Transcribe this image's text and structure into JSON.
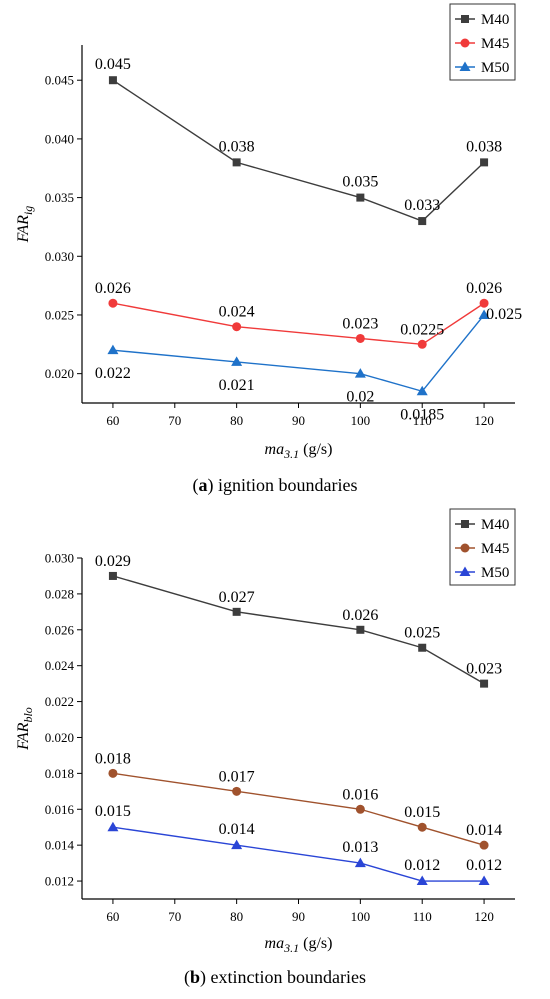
{
  "chart_data": [
    {
      "type": "line",
      "x": [
        60,
        80,
        100,
        110,
        120
      ],
      "xlim": [
        55,
        125
      ],
      "ylim": [
        0.0175,
        0.048
      ],
      "x_ticks": [
        "60",
        "70",
        "80",
        "90",
        "100",
        "110",
        "120"
      ],
      "y_ticks": [
        "0.020",
        "0.025",
        "0.030",
        "0.035",
        "0.040",
        "0.045"
      ],
      "xlabel": {
        "main": "ma",
        "sub": "3.1",
        "unit": " (g/s)"
      },
      "ylabel": {
        "main": "FAR",
        "sub": "ig"
      },
      "caption": {
        "letter": "a",
        "text": " ignition boundaries"
      },
      "legend_position": "top-right",
      "grid": false,
      "series": [
        {
          "name": "M40",
          "color": "#3d3d3d",
          "marker": "square",
          "values": [
            0.045,
            0.038,
            0.035,
            0.033,
            0.038
          ],
          "labels": [
            "0.045",
            "0.038",
            "0.035",
            "0.033",
            "0.038"
          ]
        },
        {
          "name": "M45",
          "color": "#f03a3a",
          "marker": "circle",
          "values": [
            0.026,
            0.024,
            0.023,
            0.0225,
            0.026
          ],
          "labels": [
            "0.026",
            "0.024",
            "0.023",
            "0.0225",
            "0.026"
          ]
        },
        {
          "name": "M50",
          "color": "#1f72c9",
          "marker": "triangle",
          "values": [
            0.022,
            0.021,
            0.02,
            0.0185,
            0.025
          ],
          "labels": [
            "0.022",
            "0.021",
            "0.02",
            "0.0185",
            "0.025"
          ]
        }
      ]
    },
    {
      "type": "line",
      "x": [
        60,
        80,
        100,
        110,
        120
      ],
      "xlim": [
        55,
        125
      ],
      "ylim": [
        0.011,
        0.03
      ],
      "x_ticks": [
        "60",
        "70",
        "80",
        "90",
        "100",
        "110",
        "120"
      ],
      "y_ticks": [
        "0.012",
        "0.014",
        "0.016",
        "0.018",
        "0.020",
        "0.022",
        "0.024",
        "0.026",
        "0.028",
        "0.030"
      ],
      "xlabel": {
        "main": "ma",
        "sub": "3.1",
        "unit": " (g/s)"
      },
      "ylabel": {
        "main": "FAR",
        "sub": "blo"
      },
      "caption": {
        "letter": "b",
        "text": " extinction boundaries"
      },
      "legend_position": "top-right",
      "grid": false,
      "series": [
        {
          "name": "M40",
          "color": "#3d3d3d",
          "marker": "square",
          "values": [
            0.029,
            0.027,
            0.026,
            0.025,
            0.023
          ],
          "labels": [
            "0.029",
            "0.027",
            "0.026",
            "0.025",
            "0.023"
          ]
        },
        {
          "name": "M45",
          "color": "#a0522d",
          "marker": "circle",
          "values": [
            0.018,
            0.017,
            0.016,
            0.015,
            0.014
          ],
          "labels": [
            "0.018",
            "0.017",
            "0.016",
            "0.015",
            "0.014"
          ]
        },
        {
          "name": "M50",
          "color": "#2a45d6",
          "marker": "triangle",
          "values": [
            0.015,
            0.014,
            0.013,
            0.012,
            0.012
          ],
          "labels": [
            "0.015",
            "0.014",
            "0.013",
            "0.012",
            "0.012"
          ]
        }
      ]
    }
  ]
}
